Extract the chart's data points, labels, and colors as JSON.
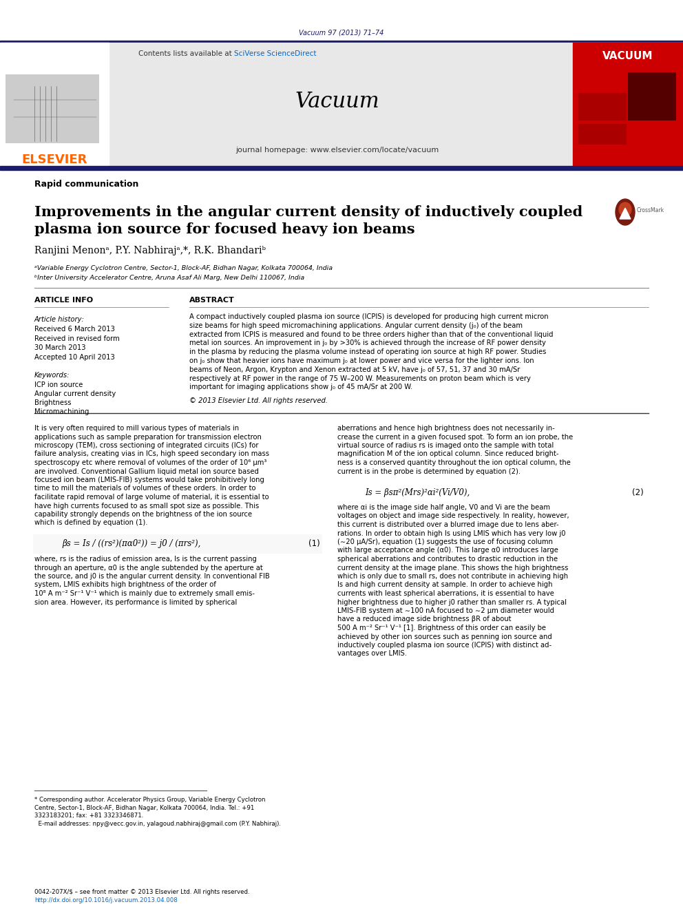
{
  "page_bg": "#ffffff",
  "header_bar_color": "#1a1a6e",
  "journal_ref": "Vacuum 97 (2013) 71–74",
  "journal_ref_color": "#1a1a6e",
  "journal_name": "Vacuum",
  "journal_homepage": "journal homepage: www.elsevier.com/locate/vacuum",
  "elsevier_color": "#ff6600",
  "sciverse_color": "#0066cc",
  "header_bg": "#e8e8e8",
  "rapid_comm": "Rapid communication",
  "paper_title": "Improvements in the angular current density of inductively coupled\nplasma ion source for focused heavy ion beams",
  "authors": "Ranjini Menonᵃ, P.Y. Nabhirajᵃ,*, R.K. Bhandariᵇ",
  "affil_a": "ᵃVariable Energy Cyclotron Centre, Sector-1, Block-AF, Bidhan Nagar, Kolkata 700064, India",
  "affil_b": "ᵇInter University Accelerator Centre, Aruna Asaf Ali Marg, New Delhi 110067, India",
  "article_info_title": "ARTICLE INFO",
  "abstract_title": "ABSTRACT",
  "article_history": "Article history:",
  "received": "Received 6 March 2013",
  "received_revised1": "Received in revised form",
  "received_revised2": "30 March 2013",
  "accepted": "Accepted 10 April 2013",
  "keywords_title": "Keywords:",
  "keywords": [
    "ICP ion source",
    "Angular current density",
    "Brightness",
    "Micromachining"
  ],
  "abstract_text": [
    "A compact inductively coupled plasma ion source (ICPIS) is developed for producing high current micron",
    "size beams for high speed micromachining applications. Angular current density (j₀) of the beam",
    "extracted from ICPIS is measured and found to be three orders higher than that of the conventional liquid",
    "metal ion sources. An improvement in j₀ by >30% is achieved through the increase of RF power density",
    "in the plasma by reducing the plasma volume instead of operating ion source at high RF power. Studies",
    "on j₀ show that heavier ions have maximum j₀ at lower power and vice versa for the lighter ions. Ion",
    "beams of Neon, Argon, Krypton and Xenon extracted at 5 kV, have j₀ of 57, 51, 37 and 30 mA/Sr",
    "respectively at RF power in the range of 75 W–200 W. Measurements on proton beam which is very",
    "important for imaging applications show j₀ of 45 mA/Sr at 200 W."
  ],
  "copyright": "© 2013 Elsevier Ltd. All rights reserved.",
  "body_col1_text": [
    "It is very often required to mill various types of materials in",
    "applications such as sample preparation for transmission electron",
    "microscopy (TEM), cross sectioning of integrated circuits (ICs) for",
    "failure analysis, creating vias in ICs, high speed secondary ion mass",
    "spectroscopy etc where removal of volumes of the order of 10⁶ μm³",
    "are involved. Conventional Gallium liquid metal ion source based",
    "focused ion beam (LMIS-FIB) systems would take prohibitively long",
    "time to mill the materials of volumes of these orders. In order to",
    "facilitate rapid removal of large volume of material, it is essential to",
    "have high currents focused to as small spot size as possible. This",
    "capability strongly depends on the brightness of the ion source",
    "which is defined by equation (1)."
  ],
  "equation1_lhs": "βs = Is / ((rs²)(πα0²)) = j0 / (πrs²),",
  "equation1_num": "(1)",
  "body_col1_text2": [
    "where, rs is the radius of emission area, Is is the current passing",
    "through an aperture, α0 is the angle subtended by the aperture at",
    "the source, and j0 is the angular current density. In conventional FIB",
    "system, LMIS exhibits high brightness of the order of",
    "10⁸ A m⁻² Sr⁻¹ V⁻¹ which is mainly due to extremely small emis-",
    "sion area. However, its performance is limited by spherical"
  ],
  "body_col2_text": [
    "aberrations and hence high brightness does not necessarily in-",
    "crease the current in a given focused spot. To form an ion probe, the",
    "virtual source of radius rs is imaged onto the sample with total",
    "magnification M of the ion optical column. Since reduced bright-",
    "ness is a conserved quantity throughout the ion optical column, the",
    "current is in the probe is determined by equation (2)."
  ],
  "equation2_lhs": "Is = βsπ²(Mrs)²αi²(Vi/V0),",
  "equation2_num": "(2)",
  "body_col2_text2": [
    "where αi is the image side half angle, V0 and Vi are the beam",
    "voltages on object and image side respectively. In reality, however,",
    "this current is distributed over a blurred image due to lens aber-",
    "rations. In order to obtain high Is using LMIS which has very low j0",
    "(∼20 μA/Sr), equation (1) suggests the use of focusing column",
    "with large acceptance angle (α0). This large α0 introduces large",
    "spherical aberrations and contributes to drastic reduction in the",
    "current density at the image plane. This shows the high brightness",
    "which is only due to small rs, does not contribute in achieving high",
    "Is and high current density at sample. In order to achieve high",
    "currents with least spherical aberrations, it is essential to have",
    "higher brightness due to higher j0 rather than smaller rs. A typical",
    "LMIS-FIB system at ∼100 nA focused to ∼2 μm diameter would",
    "have a reduced image side brightness βR of about",
    "500 A m⁻² Sr⁻¹ V⁻¹ [1]. Brightness of this order can easily be",
    "achieved by other ion sources such as penning ion source and",
    "inductively coupled plasma ion source (ICPIS) with distinct ad-",
    "vantages over LMIS."
  ],
  "footnote_lines": [
    "* Corresponding author. Accelerator Physics Group, Variable Energy Cyclotron",
    "Centre, Sector-1, Block-AF, Bidhan Nagar, Kolkata 700064, India. Tel.: +91",
    "3323183201; fax: +81 3323346871.",
    "  E-mail addresses: npy@vecc.gov.in, yalagoud.nabhiraj@gmail.com (P.Y. Nabhiraj)."
  ],
  "footer_line1": "0042-207X/$ – see front matter © 2013 Elsevier Ltd. All rights reserved.",
  "footer_line2": "http://dx.doi.org/10.1016/j.vacuum.2013.04.008",
  "crossmark_dark": "#7a1a10",
  "crossmark_mid": "#c04020",
  "vacuum_red": "#cc0000"
}
